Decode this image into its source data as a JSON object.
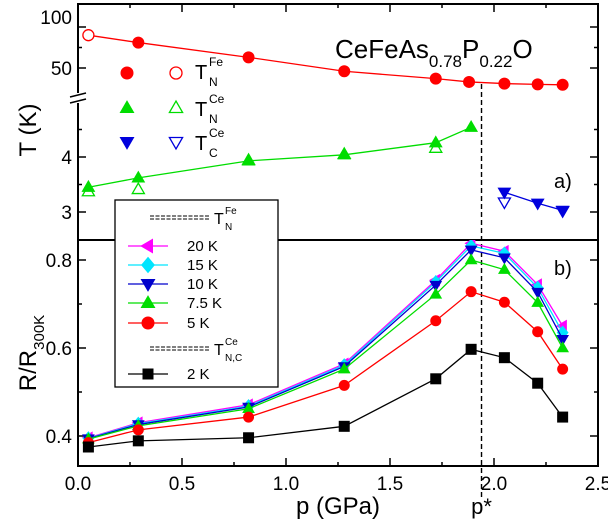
{
  "chart_data": {
    "title_parts": {
      "main": "CeFeAs",
      "sub1": "0.78",
      "mid": "P",
      "sub2": "0.22",
      "end": "O"
    },
    "x_axis": {
      "label": "p (GPa)",
      "ticks": [
        "0.0",
        "0.5",
        "1.0",
        "1.5",
        "2.0",
        "2.5"
      ],
      "range": [
        0,
        2.5
      ],
      "marker_label": "p*",
      "marker_value": 1.94
    },
    "panels": [
      {
        "id": "a",
        "panel_label": "a)",
        "type": "scatter",
        "ylabel": "T (K)",
        "y_axis_break": true,
        "y_upper": {
          "range": [
            25,
            100
          ],
          "ticks": [
            "50",
            "100"
          ]
        },
        "y_lower": {
          "range": [
            2.6,
            5.0
          ],
          "ticks": [
            "3",
            "4"
          ]
        },
        "series": [
          {
            "key": "TN_Fe",
            "color": "#ff0000",
            "marker": "circle",
            "points_filled": [
              [
                0.05,
                90
              ],
              [
                0.29,
                81
              ],
              [
                0.82,
                63
              ],
              [
                1.28,
                46
              ],
              [
                1.72,
                37
              ],
              [
                1.88,
                33
              ],
              [
                2.05,
                31
              ],
              [
                2.21,
                30
              ],
              [
                2.33,
                29.5
              ]
            ],
            "points_open": [
              [
                0.05,
                90
              ]
            ],
            "fit": [
              [
                0.05,
                90
              ],
              [
                0.29,
                81
              ],
              [
                0.82,
                63
              ],
              [
                1.28,
                46
              ],
              [
                1.72,
                37
              ],
              [
                1.88,
                33
              ],
              [
                2.05,
                31
              ],
              [
                2.21,
                30
              ],
              [
                2.33,
                29.5
              ]
            ]
          },
          {
            "key": "TN_Ce",
            "color": "#00dd00",
            "marker": "triangle-up",
            "points_filled": [
              [
                0.05,
                3.45
              ],
              [
                0.29,
                3.62
              ],
              [
                0.82,
                3.93
              ],
              [
                1.28,
                4.04
              ],
              [
                1.72,
                4.26
              ],
              [
                1.89,
                4.54
              ]
            ],
            "points_open": [
              [
                0.05,
                3.37
              ],
              [
                0.29,
                3.41
              ],
              [
                0.82,
                3.94
              ],
              [
                1.28,
                4.05
              ],
              [
                1.72,
                4.16
              ]
            ],
            "fit": [
              [
                0.05,
                3.45
              ],
              [
                0.29,
                3.62
              ],
              [
                0.82,
                3.93
              ],
              [
                1.28,
                4.04
              ],
              [
                1.72,
                4.26
              ],
              [
                1.89,
                4.54
              ]
            ]
          },
          {
            "key": "TC_Ce",
            "color": "#0000dd",
            "marker": "triangle-down",
            "points_filled": [
              [
                2.05,
                3.36
              ],
              [
                2.21,
                3.16
              ],
              [
                2.33,
                3.03
              ]
            ],
            "points_open": [
              [
                2.05,
                3.18
              ],
              [
                2.33,
                3.02
              ]
            ],
            "fit": [
              [
                2.05,
                3.36
              ],
              [
                2.21,
                3.16
              ],
              [
                2.33,
                3.03
              ]
            ]
          }
        ],
        "legend": [
          {
            "key": "TN_Fe",
            "T": "T",
            "sup": "Fe",
            "sub": "N"
          },
          {
            "key": "TN_Ce",
            "T": "T",
            "sup": "Ce",
            "sub": "N"
          },
          {
            "key": "TC_Ce",
            "T": "T",
            "sup": "Ce",
            "sub": "C"
          }
        ]
      },
      {
        "id": "b",
        "panel_label": "b)",
        "type": "line",
        "ylabel_main": "R/R",
        "ylabel_sub": "300K",
        "ylim": [
          0.35,
          0.88
        ],
        "yticks": [
          "0.4",
          "0.6",
          "0.8"
        ],
        "series": [
          {
            "name": "20 K",
            "color": "#ff00ff",
            "marker": "triangle-left",
            "x": [
              0.05,
              0.29,
              0.82,
              1.28,
              1.72,
              1.89,
              2.05,
              2.21,
              2.33
            ],
            "y": [
              0.396,
              0.43,
              0.471,
              0.564,
              0.754,
              0.838,
              0.82,
              0.744,
              0.65
            ]
          },
          {
            "name": "15 K",
            "color": "#00e5ff",
            "marker": "diamond",
            "x": [
              0.05,
              0.29,
              0.82,
              1.28,
              1.72,
              1.89,
              2.05,
              2.21,
              2.33
            ],
            "y": [
              0.395,
              0.428,
              0.468,
              0.561,
              0.75,
              0.832,
              0.815,
              0.737,
              0.635
            ]
          },
          {
            "name": "10 K",
            "color": "#0000cc",
            "marker": "triangle-down",
            "x": [
              0.05,
              0.29,
              0.82,
              1.28,
              1.72,
              1.89,
              2.05,
              2.21,
              2.33
            ],
            "y": [
              0.394,
              0.426,
              0.466,
              0.558,
              0.743,
              0.823,
              0.805,
              0.727,
              0.62
            ]
          },
          {
            "name": "7.5 K",
            "color": "#00dd00",
            "marker": "triangle-up",
            "x": [
              0.05,
              0.29,
              0.82,
              1.28,
              1.72,
              1.89,
              2.05,
              2.21,
              2.33
            ],
            "y": [
              0.393,
              0.423,
              0.462,
              0.552,
              0.722,
              0.8,
              0.778,
              0.703,
              0.6
            ]
          },
          {
            "name": "5 K",
            "color": "#ff0000",
            "marker": "circle",
            "x": [
              0.05,
              0.29,
              0.82,
              1.28,
              1.72,
              1.89,
              2.05,
              2.21,
              2.33
            ],
            "y": [
              0.385,
              0.414,
              0.443,
              0.515,
              0.662,
              0.728,
              0.704,
              0.637,
              0.552
            ]
          },
          {
            "name": "2 K",
            "color": "#000000",
            "marker": "square",
            "x": [
              0.05,
              0.29,
              0.82,
              1.28,
              1.72,
              1.89,
              2.05,
              2.21,
              2.33
            ],
            "y": [
              0.375,
              0.389,
              0.396,
              0.422,
              0.53,
              0.597,
              0.578,
              0.52,
              0.443
            ]
          }
        ],
        "legend_header_1": {
          "T": "T",
          "sup": "Fe",
          "sub": "N"
        },
        "legend_header_2": {
          "T": "T",
          "sup": "Ce",
          "sub": "N,C"
        }
      }
    ]
  }
}
